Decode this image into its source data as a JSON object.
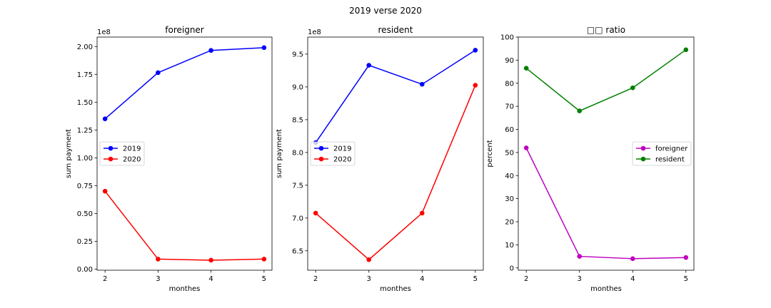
{
  "figure": {
    "suptitle": "2019 verse 2020"
  },
  "chart_data": [
    {
      "type": "line",
      "title": "foreigner",
      "xlabel": "monthes",
      "ylabel": "sum payment",
      "offset_text": "1e8",
      "x": [
        2,
        3,
        4,
        5
      ],
      "xlim": [
        1.85,
        5.15
      ],
      "ylim": [
        -0.0099,
        2.085
      ],
      "yticks": [
        0.0,
        0.25,
        0.5,
        0.75,
        1.0,
        1.25,
        1.5,
        1.75,
        2.0
      ],
      "ytick_labels": [
        "0.00",
        "0.25",
        "0.50",
        "0.75",
        "1.00",
        "1.25",
        "1.50",
        "1.75",
        "2.00"
      ],
      "xtick_labels": [
        "2",
        "3",
        "4",
        "5"
      ],
      "legend": "center-left",
      "grid": false,
      "series": [
        {
          "name": "2019",
          "color": "#0000ff",
          "values": [
            1.35,
            1.765,
            1.965,
            1.99
          ]
        },
        {
          "name": "2020",
          "color": "#ff0000",
          "values": [
            0.7,
            0.09,
            0.08,
            0.09
          ]
        }
      ]
    },
    {
      "type": "line",
      "title": "resident",
      "xlabel": "monthes",
      "ylabel": "sum payment",
      "offset_text": "1e8",
      "x": [
        2,
        3,
        4,
        5
      ],
      "xlim": [
        1.85,
        5.15
      ],
      "ylim": [
        6.204,
        9.76
      ],
      "yticks": [
        6.5,
        7.0,
        7.5,
        8.0,
        8.5,
        9.0,
        9.5
      ],
      "ytick_labels": [
        "6.5",
        "7.0",
        "7.5",
        "8.0",
        "8.5",
        "9.0",
        "9.5"
      ],
      "xtick_labels": [
        "2",
        "3",
        "4",
        "5"
      ],
      "legend": "center-left",
      "grid": false,
      "series": [
        {
          "name": "2019",
          "color": "#0000ff",
          "values": [
            8.15,
            9.33,
            9.04,
            9.56
          ]
        },
        {
          "name": "2020",
          "color": "#ff0000",
          "values": [
            7.075,
            6.365,
            7.075,
            9.025
          ]
        }
      ]
    },
    {
      "type": "line",
      "title": "□□ ratio",
      "xlabel": "monthes",
      "ylabel": "percent",
      "x": [
        2,
        3,
        4,
        5
      ],
      "xlim": [
        1.85,
        5.15
      ],
      "ylim": [
        -1.0,
        100.0
      ],
      "yticks": [
        0,
        10,
        20,
        30,
        40,
        50,
        60,
        70,
        80,
        90,
        100
      ],
      "ytick_labels": [
        "0",
        "10",
        "20",
        "30",
        "40",
        "50",
        "60",
        "70",
        "80",
        "90",
        "100"
      ],
      "xtick_labels": [
        "2",
        "3",
        "4",
        "5"
      ],
      "legend": "center-right",
      "grid": false,
      "series": [
        {
          "name": "foreigner",
          "color": "#bf00bf",
          "values": [
            52.0,
            5.0,
            4.0,
            4.5
          ]
        },
        {
          "name": "resident",
          "color": "#008000",
          "values": [
            86.5,
            68.0,
            78.0,
            94.5
          ]
        }
      ]
    }
  ]
}
